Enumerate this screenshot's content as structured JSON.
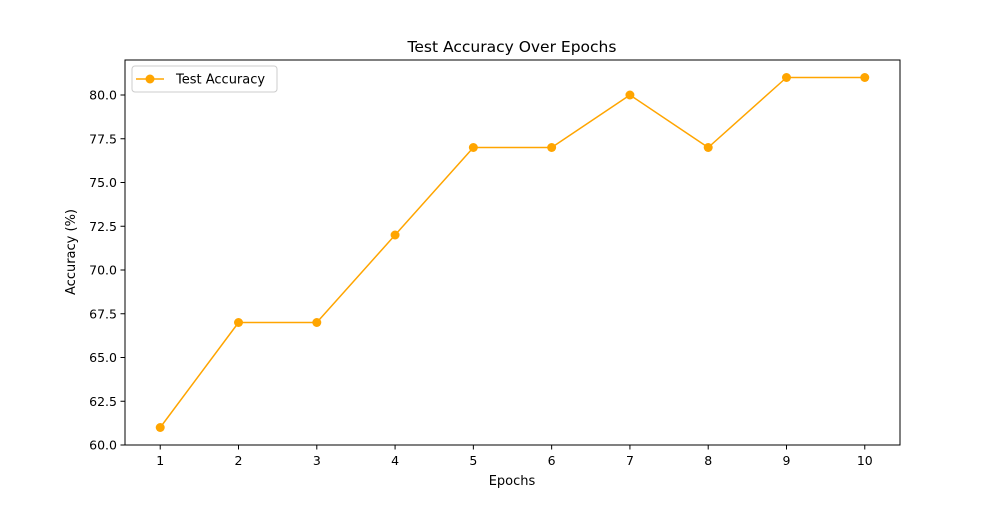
{
  "chart_data": {
    "type": "line",
    "title": "Test Accuracy Over Epochs",
    "xlabel": "Epochs",
    "ylabel": "Accuracy (%)",
    "x": [
      1,
      2,
      3,
      4,
      5,
      6,
      7,
      8,
      9,
      10
    ],
    "series": [
      {
        "name": "Test Accuracy",
        "values": [
          61,
          67,
          67,
          72,
          77,
          77,
          80,
          77,
          81,
          81
        ],
        "color": "#ffa500",
        "marker": "circle"
      }
    ],
    "xticks": [
      "1",
      "2",
      "3",
      "4",
      "5",
      "6",
      "7",
      "8",
      "9",
      "10"
    ],
    "yticks": [
      "60.0",
      "62.5",
      "65.0",
      "67.5",
      "70.0",
      "72.5",
      "75.0",
      "77.5",
      "80.0"
    ],
    "xlim": [
      0.55,
      10.45
    ],
    "ylim": [
      60,
      82
    ],
    "grid": false,
    "legend_position": "top-left"
  }
}
